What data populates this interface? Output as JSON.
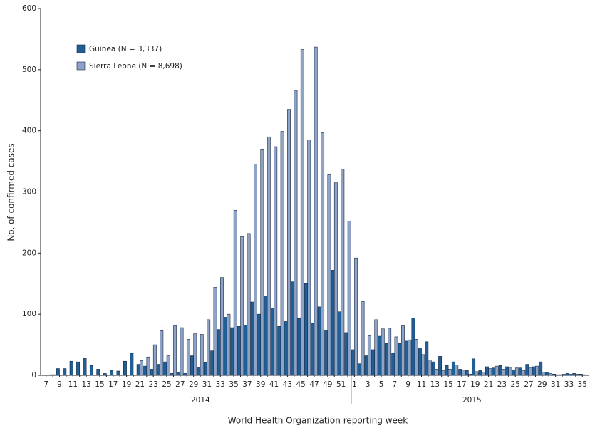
{
  "chart_data": {
    "type": "bar",
    "x_label": "World Health Organization reporting week",
    "y_label": "No. of confirmed cases",
    "years": [
      "2014",
      "2015"
    ],
    "categories": [
      "7",
      null,
      "9",
      null,
      "11",
      null,
      "13",
      null,
      "15",
      null,
      "17",
      null,
      "19",
      null,
      "21",
      null,
      "23",
      null,
      "25",
      null,
      "27",
      null,
      "29",
      null,
      "31",
      null,
      "33",
      null,
      "35",
      null,
      "37",
      null,
      "39",
      null,
      "41",
      null,
      "43",
      null,
      "45",
      null,
      "47",
      null,
      "49",
      null,
      "51",
      null,
      "1",
      null,
      "3",
      null,
      "5",
      null,
      "7",
      null,
      "9",
      null,
      "11",
      null,
      "13",
      null,
      "15",
      null,
      "17",
      null,
      "19",
      null,
      "21",
      null,
      "23",
      null,
      "25",
      null,
      "27",
      null,
      "29",
      null,
      "31",
      null,
      "33",
      null,
      "35"
    ],
    "series": [
      {
        "name": "Guinea (N = 3,337)",
        "color": "#1f5f96",
        "values": [
          0,
          1,
          11,
          11,
          23,
          22,
          28,
          16,
          10,
          3,
          8,
          7,
          23,
          36,
          18,
          15,
          10,
          18,
          22,
          3,
          5,
          3,
          32,
          13,
          21,
          40,
          75,
          95,
          78,
          80,
          82,
          120,
          100,
          130,
          110,
          80,
          88,
          153,
          93,
          150,
          85,
          112,
          74,
          172,
          104,
          70,
          42,
          19,
          32,
          42,
          64,
          52,
          36,
          52,
          56,
          94,
          45,
          55,
          22,
          31,
          16,
          22,
          10,
          8,
          27,
          8,
          14,
          12,
          16,
          14,
          9,
          12,
          18,
          14,
          22,
          5,
          2,
          1,
          3,
          3,
          2
        ]
      },
      {
        "name": "Sierra Leone (N = 8,698)",
        "color": "#8fa3c7",
        "values": [
          0,
          1,
          0,
          0,
          0,
          0,
          0,
          0,
          0,
          0,
          0,
          0,
          0,
          0,
          24,
          30,
          50,
          73,
          32,
          81,
          78,
          59,
          68,
          67,
          91,
          144,
          160,
          100,
          270,
          227,
          232,
          345,
          370,
          390,
          374,
          399,
          435,
          466,
          533,
          385,
          537,
          397,
          328,
          315,
          337,
          252,
          192,
          121,
          65,
          91,
          76,
          77,
          63,
          81,
          58,
          59,
          34,
          25,
          10,
          8,
          10,
          17,
          9,
          2,
          6,
          5,
          11,
          15,
          10,
          13,
          12,
          8,
          12,
          15,
          5,
          3,
          1,
          2,
          2,
          2,
          1
        ]
      }
    ],
    "ylim": [
      0,
      600
    ],
    "yticks": [
      0,
      100,
      200,
      300,
      400,
      500,
      600
    ],
    "legend": "upper left"
  }
}
